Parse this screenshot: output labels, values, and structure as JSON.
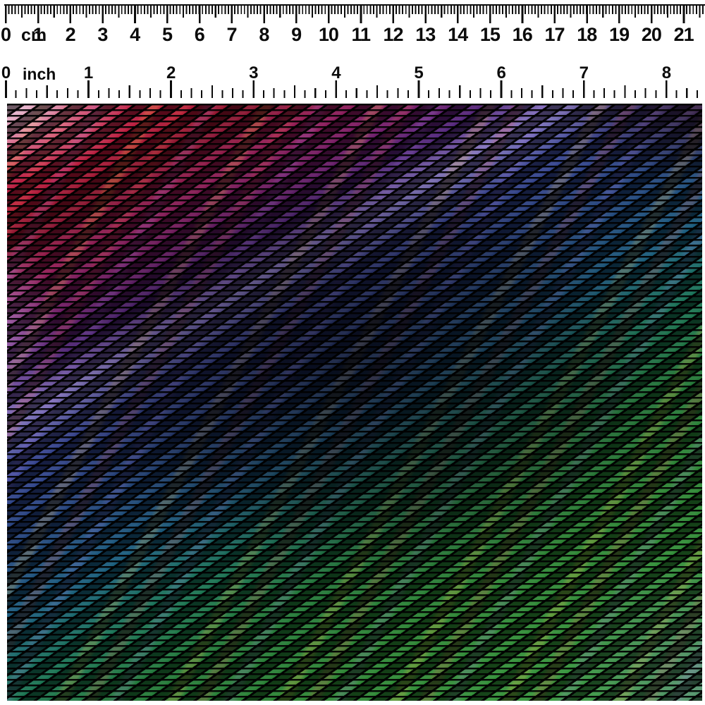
{
  "cm_ruler": {
    "unit_label": "cm",
    "numbers": [
      "0",
      "1",
      "2",
      "3",
      "4",
      "5",
      "6",
      "7",
      "8",
      "9",
      "10",
      "11",
      "12",
      "13",
      "14",
      "15",
      "16",
      "17",
      "18",
      "19",
      "20",
      "21"
    ]
  },
  "inch_ruler": {
    "unit_label": "inch",
    "numbers": [
      "0",
      "1",
      "2",
      "3",
      "4",
      "5",
      "6",
      "7",
      "8"
    ]
  },
  "swatch": {
    "material_description": "Rainbow carbon-fiber 2x2 twill weave fabric swatch photographed below cm and inch scale rulers; diagonal rainbow colour bands on black weave, darker at centre, pale pink sheen at top-left",
    "palette": {
      "tick_color": "#0b0b0b",
      "pale_pink": "#dfb3cf",
      "pink_red": "#c62a52",
      "red": "#b51335",
      "dark_red": "#871028",
      "magenta": "#8f1650",
      "purple_magenta": "#6f1766",
      "purple": "#4f2178",
      "lavender": "#8273bd",
      "blue": "#32408e",
      "steel_blue": "#1f3f7a",
      "teal": "#14587a",
      "teal_green": "#147052",
      "green_dark": "#1d7534",
      "green": "#27812e",
      "green_mid": "#2f8f35",
      "green_bright": "#36a03e",
      "gold_streak": "#fabe3c",
      "orange_streak": "#eb503c",
      "weave_background": "#05040a"
    }
  }
}
